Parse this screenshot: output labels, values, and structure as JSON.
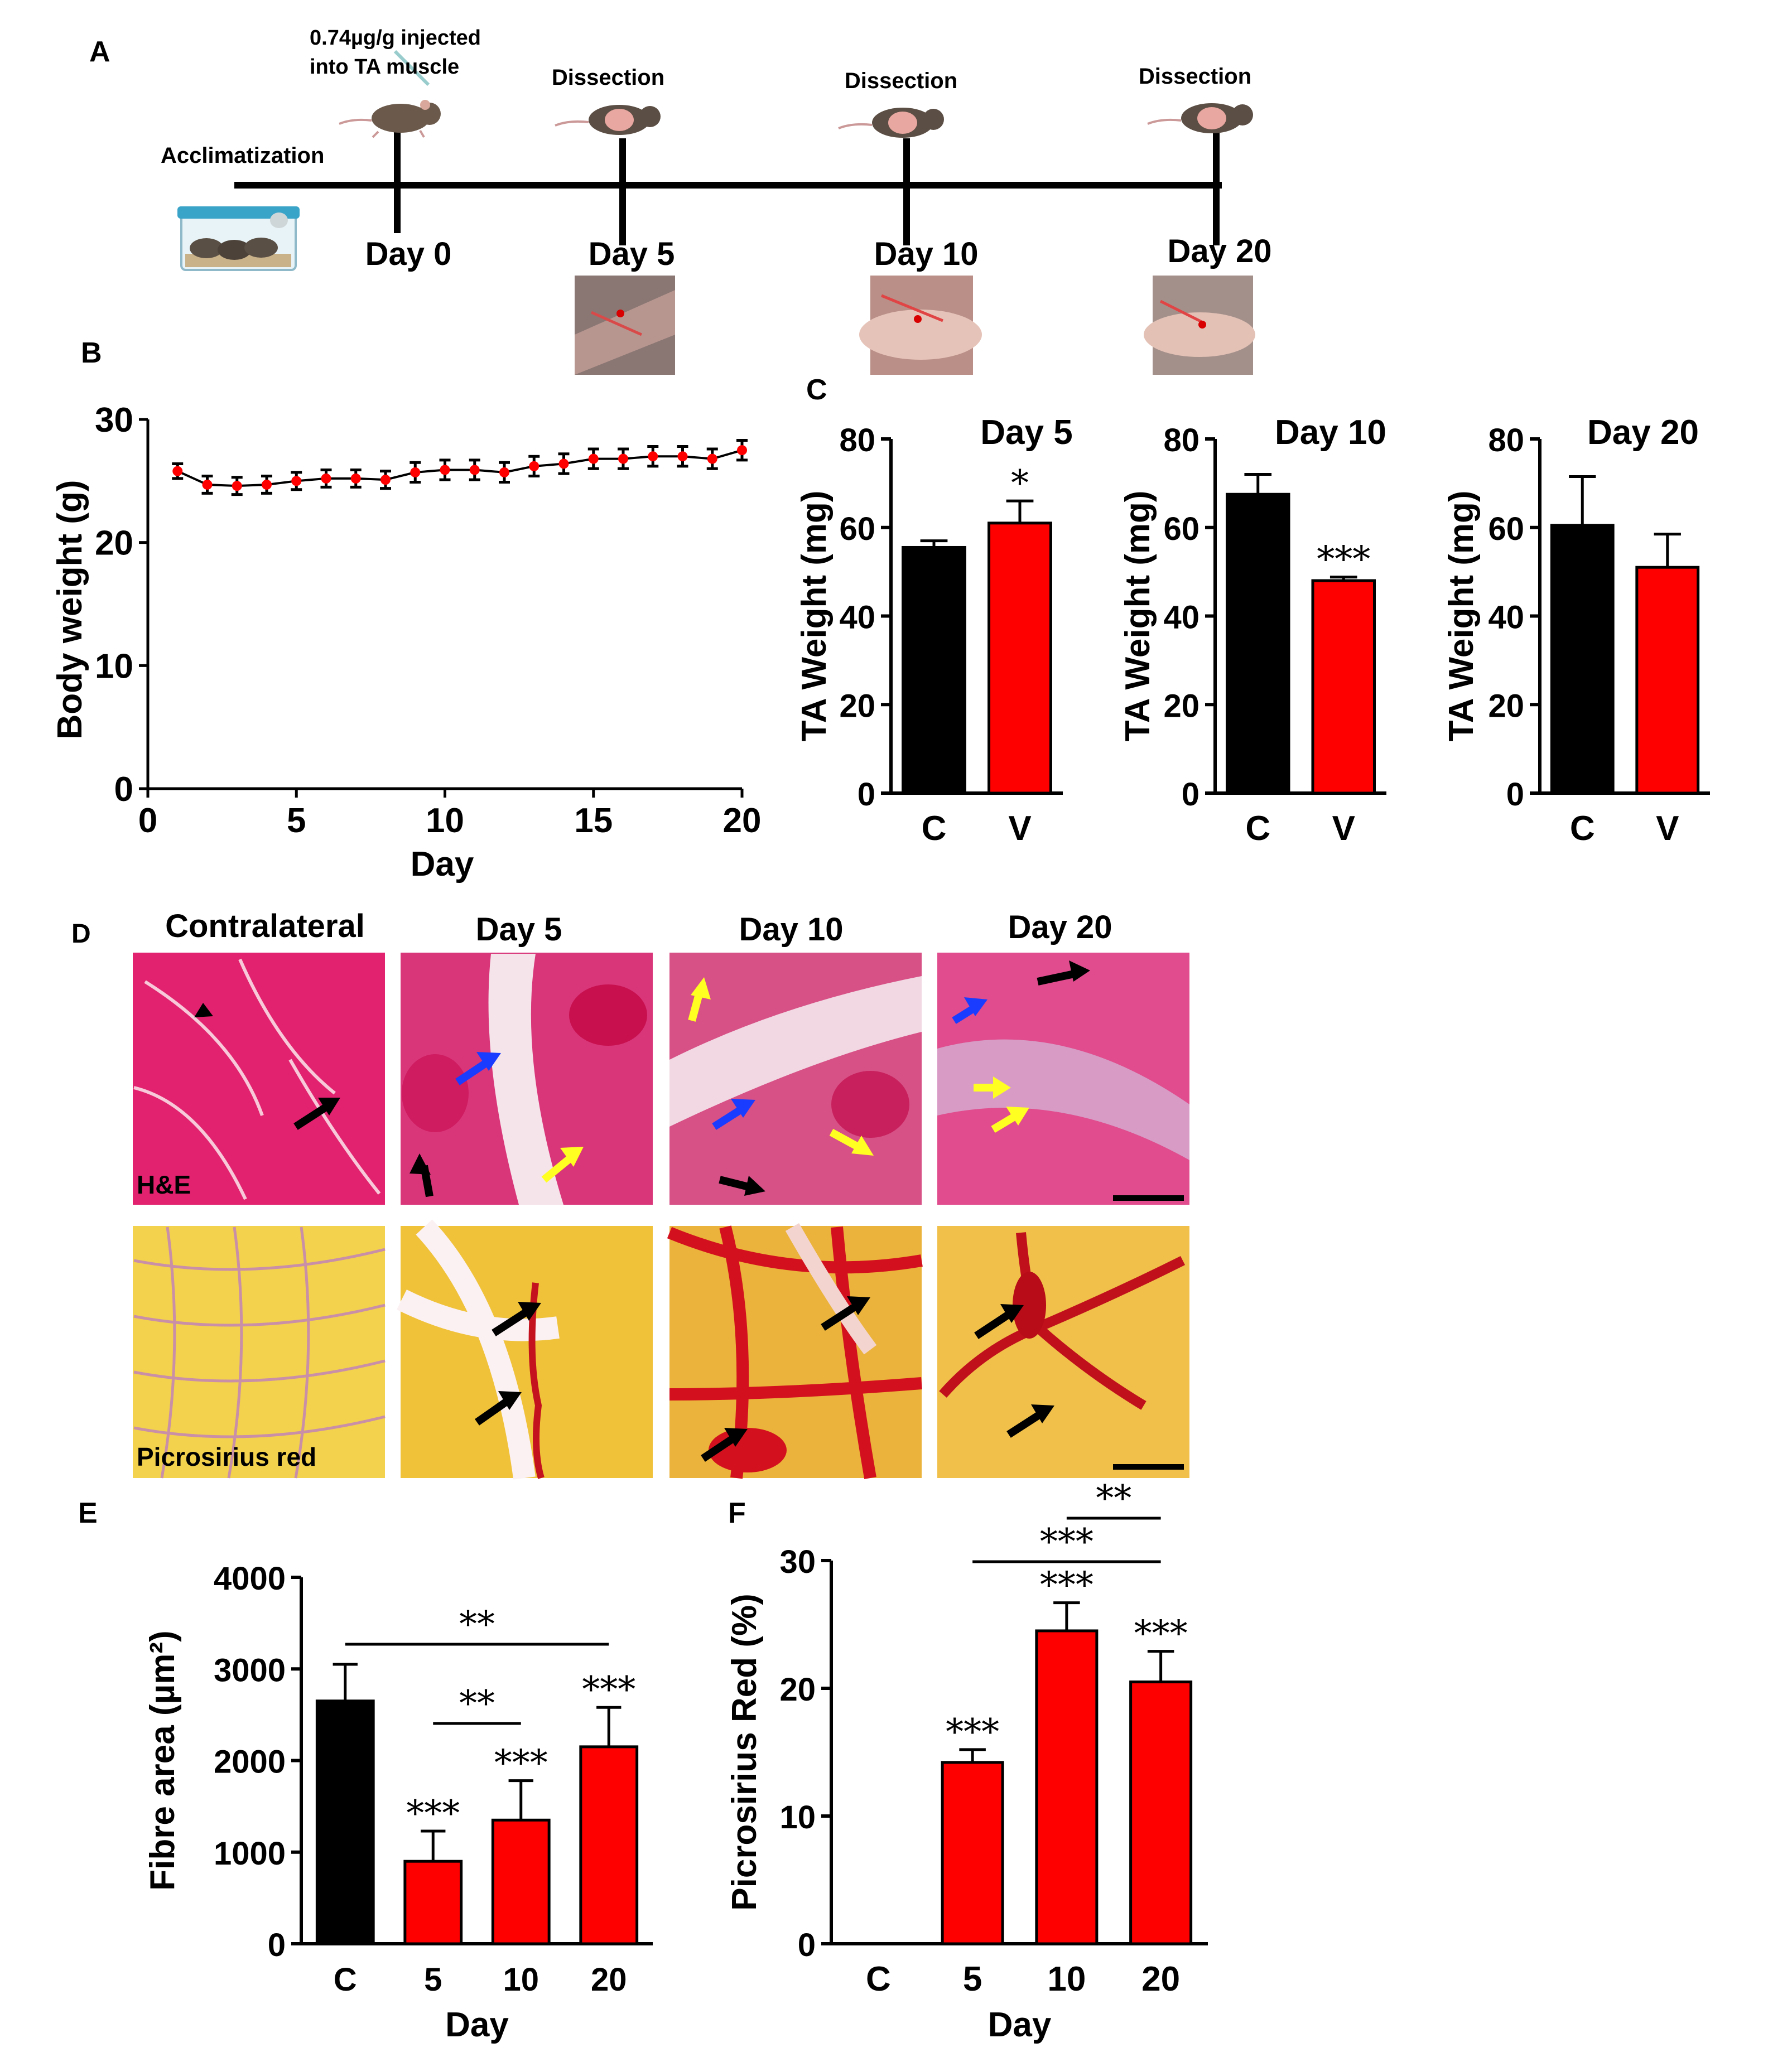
{
  "panels": {
    "a": "A",
    "b": "B",
    "c": "C",
    "d": "D",
    "e": "E",
    "f": "F"
  },
  "timeline": {
    "injection": "0.74µg/g injected",
    "injection2": "into TA muscle",
    "acclimatization": "Acclimatization",
    "dissection": "Dissection",
    "days": [
      "Day 0",
      "Day 5",
      "Day 10",
      "Day 20"
    ]
  },
  "histology": {
    "columns": [
      "Contralateral",
      "Day 5",
      "Day 10",
      "Day 20"
    ],
    "rows": [
      "H&E",
      "Picrosirius red"
    ]
  },
  "colors": {
    "control": "#000000",
    "treated": "#ff0000",
    "line": "#000000"
  },
  "chart_data": [
    {
      "id": "b",
      "type": "line",
      "xlabel": "Day",
      "ylabel": "Body weight (g)",
      "xlim": [
        0,
        20
      ],
      "ylim": [
        0,
        30
      ],
      "xticks": [
        0,
        5,
        10,
        15,
        20
      ],
      "yticks": [
        0,
        10,
        20,
        30
      ],
      "x": [
        1,
        2,
        3,
        4,
        5,
        6,
        7,
        8,
        9,
        10,
        11,
        12,
        13,
        14,
        15,
        16,
        17,
        18,
        19,
        20
      ],
      "values": [
        25.8,
        24.7,
        24.6,
        24.7,
        25.0,
        25.2,
        25.2,
        25.1,
        25.7,
        25.9,
        25.9,
        25.7,
        26.2,
        26.4,
        26.8,
        26.8,
        27.0,
        27.0,
        26.8,
        27.5
      ],
      "errors": [
        0.6,
        0.7,
        0.7,
        0.7,
        0.7,
        0.7,
        0.7,
        0.7,
        0.8,
        0.8,
        0.8,
        0.8,
        0.8,
        0.8,
        0.8,
        0.8,
        0.8,
        0.8,
        0.8,
        0.8
      ]
    },
    {
      "id": "c1",
      "type": "bar",
      "title": "Day 5",
      "ylabel": "TA Weight (mg)",
      "categories": [
        "C",
        "V"
      ],
      "values": [
        55.5,
        61
      ],
      "errors": [
        1.5,
        5
      ],
      "ylim": [
        0,
        80
      ],
      "yticks": [
        0,
        20,
        40,
        60,
        80
      ],
      "sig": [
        "",
        "*"
      ]
    },
    {
      "id": "c2",
      "type": "bar",
      "title": "Day 10",
      "ylabel": "TA Weight (mg)",
      "categories": [
        "C",
        "V"
      ],
      "values": [
        67.5,
        48
      ],
      "errors": [
        4.5,
        0.8
      ],
      "ylim": [
        0,
        80
      ],
      "yticks": [
        0,
        20,
        40,
        60,
        80
      ],
      "sig": [
        "",
        "***"
      ]
    },
    {
      "id": "c3",
      "type": "bar",
      "title": "Day 20",
      "ylabel": "TA Weight (mg)",
      "categories": [
        "C",
        "V"
      ],
      "values": [
        60.5,
        51
      ],
      "errors": [
        11,
        7.5
      ],
      "ylim": [
        0,
        80
      ],
      "yticks": [
        0,
        20,
        40,
        60,
        80
      ],
      "sig": [
        "",
        ""
      ]
    },
    {
      "id": "e",
      "type": "bar",
      "xlabel": "Day",
      "ylabel": "Fibre area (µm²)",
      "categories": [
        "C",
        "5",
        "10",
        "20"
      ],
      "values": [
        2650,
        900,
        1350,
        2150
      ],
      "errors": [
        400,
        330,
        430,
        430
      ],
      "ylim": [
        0,
        4000
      ],
      "yticks": [
        0,
        1000,
        2000,
        3000,
        4000
      ],
      "sig": [
        "",
        "***",
        "***",
        "***"
      ],
      "brackets": [
        {
          "from": 0,
          "to": 3,
          "label": "**"
        },
        {
          "from": 1,
          "to": 2,
          "label": "**"
        }
      ]
    },
    {
      "id": "f",
      "type": "bar",
      "xlabel": "Day",
      "ylabel": "Picrosirius Red (%)",
      "categories": [
        "C",
        "5",
        "10",
        "20"
      ],
      "values": [
        0,
        14.2,
        24.5,
        20.5
      ],
      "errors": [
        0,
        1.0,
        2.2,
        2.4
      ],
      "ylim": [
        0,
        30
      ],
      "yticks": [
        0,
        10,
        20,
        30
      ],
      "sig": [
        "",
        "***",
        "***",
        "***"
      ],
      "brackets": [
        {
          "from": 1,
          "to": 3,
          "label": "***"
        },
        {
          "from": 2,
          "to": 3,
          "label": "**"
        }
      ]
    }
  ]
}
